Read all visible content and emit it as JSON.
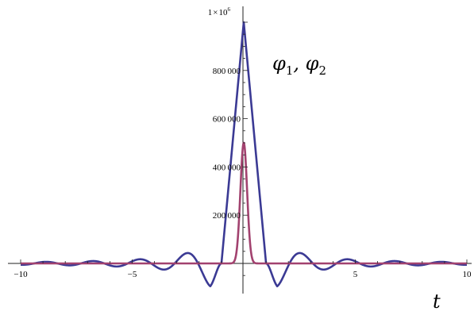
{
  "chart_data": {
    "type": "line",
    "title": "",
    "xlabel": "t",
    "ylabel": "",
    "xlim": [
      -10.5,
      10
    ],
    "ylim": [
      -75000,
      1030000
    ],
    "grid": false,
    "x_ticks": [
      -10,
      -5,
      5,
      10
    ],
    "x_tick_labels": [
      "−10",
      "−5",
      "5",
      "10"
    ],
    "y_ticks": [
      200000,
      400000,
      600000,
      800000
    ],
    "y_tick_labels": [
      "200 000",
      "400 000",
      "600 000",
      "800 000"
    ],
    "y_top_tick_value": 1000000,
    "y_top_tick_label": {
      "mantissa": "1",
      "times": "×",
      "base": "10",
      "exp": "6"
    },
    "annotation": {
      "text": "φ",
      "sub1": "1",
      "sep": ", ",
      "sub2": "2"
    },
    "series": [
      {
        "color": "#3b3a94",
        "peak": 1000000,
        "shape": "oscillating-triangle",
        "zero_crossing": 1.0,
        "tail_amplitude_at_1.5": 95000,
        "oscillation_period": 1.05
      },
      {
        "color": "#a2426f",
        "peak": 500000,
        "shape": "narrow-gaussian",
        "half_width": 0.15
      }
    ]
  }
}
